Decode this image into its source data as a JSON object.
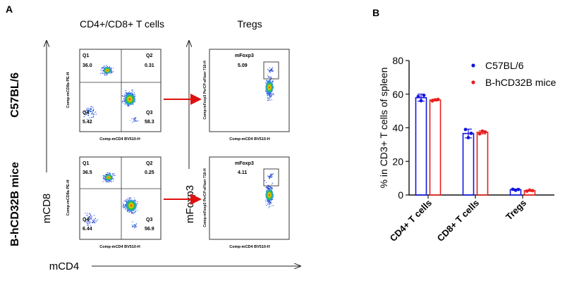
{
  "panel_a": {
    "label": "A",
    "header_left": "CD4+/CD8+ T cells",
    "header_right": "Tregs",
    "row1_label": "C57BL/6",
    "row2_label": "B-hCD32B mice",
    "mcd8_label": "mCD8",
    "mfoxp3_label": "mFoxp3",
    "mcd4_label": "mCD4",
    "plots": {
      "row1_quad": {
        "xlabel": "Comp-mCD4 BV510-H",
        "ylabel": "Comp-mCD8a PE-H",
        "q1_name": "Q1",
        "q1_val": "36.0",
        "q2_name": "Q2",
        "q2_val": "0.31",
        "q3_name": "Q3",
        "q3_val": "58.3",
        "q4_name": "Q4",
        "q4_val": "5.42"
      },
      "row2_quad": {
        "xlabel": "Comp-mCD4 BV510-H",
        "ylabel": "Comp-mCD8a PE-H",
        "q1_name": "Q1",
        "q1_val": "36.5",
        "q2_name": "Q2",
        "q2_val": "0.25",
        "q3_name": "Q3",
        "q3_val": "56.9",
        "q4_name": "Q4",
        "q4_val": "6.44"
      },
      "row1_treg": {
        "xlabel": "Comp-mCD4 BV510-H",
        "ylabel": "Comp-mFoxp3 PerCP-eFluor 710-H",
        "gate_name": "mFoxp3",
        "gate_val": "5.09"
      },
      "row2_treg": {
        "xlabel": "Comp-mCD4 BV510-H",
        "ylabel": "Comp-mFoxp3 PerCP-eFluor 710-H",
        "gate_name": "mFoxp3",
        "gate_val": "4.11"
      }
    }
  },
  "panel_b": {
    "label": "B"
  },
  "colors": {
    "c57": "#1414e0",
    "hcd32b": "#e81e1e",
    "arrow": "#e01010"
  },
  "chart_data": {
    "type": "bar",
    "categories": [
      "CD4+ T cells",
      "CD8+ T cells",
      "Tregs"
    ],
    "ylabel": "% in CD3+ T cells of spleen",
    "ylim": [
      0,
      80
    ],
    "yticks": [
      "0",
      "20",
      "40",
      "60",
      "80"
    ],
    "legend_position": "top-right",
    "series": [
      {
        "name": "C57BL/6",
        "color": "#1414e0",
        "values": [
          57.9,
          36.6,
          3.2
        ],
        "error": [
          2.1,
          2.6,
          0.4
        ],
        "points": [
          [
            58.6,
            56.1,
            59.3
          ],
          [
            39.0,
            34.1,
            36.7
          ],
          [
            3.4,
            2.8,
            3.3
          ]
        ]
      },
      {
        "name": "B-hCD32B mice",
        "color": "#e81e1e",
        "values": [
          56.5,
          37.3,
          2.6
        ],
        "error": [
          0.5,
          0.9,
          0.4
        ],
        "points": [
          [
            56.0,
            56.6,
            56.9
          ],
          [
            36.4,
            38.0,
            37.5
          ],
          [
            2.3,
            2.9,
            2.6
          ]
        ]
      }
    ]
  }
}
